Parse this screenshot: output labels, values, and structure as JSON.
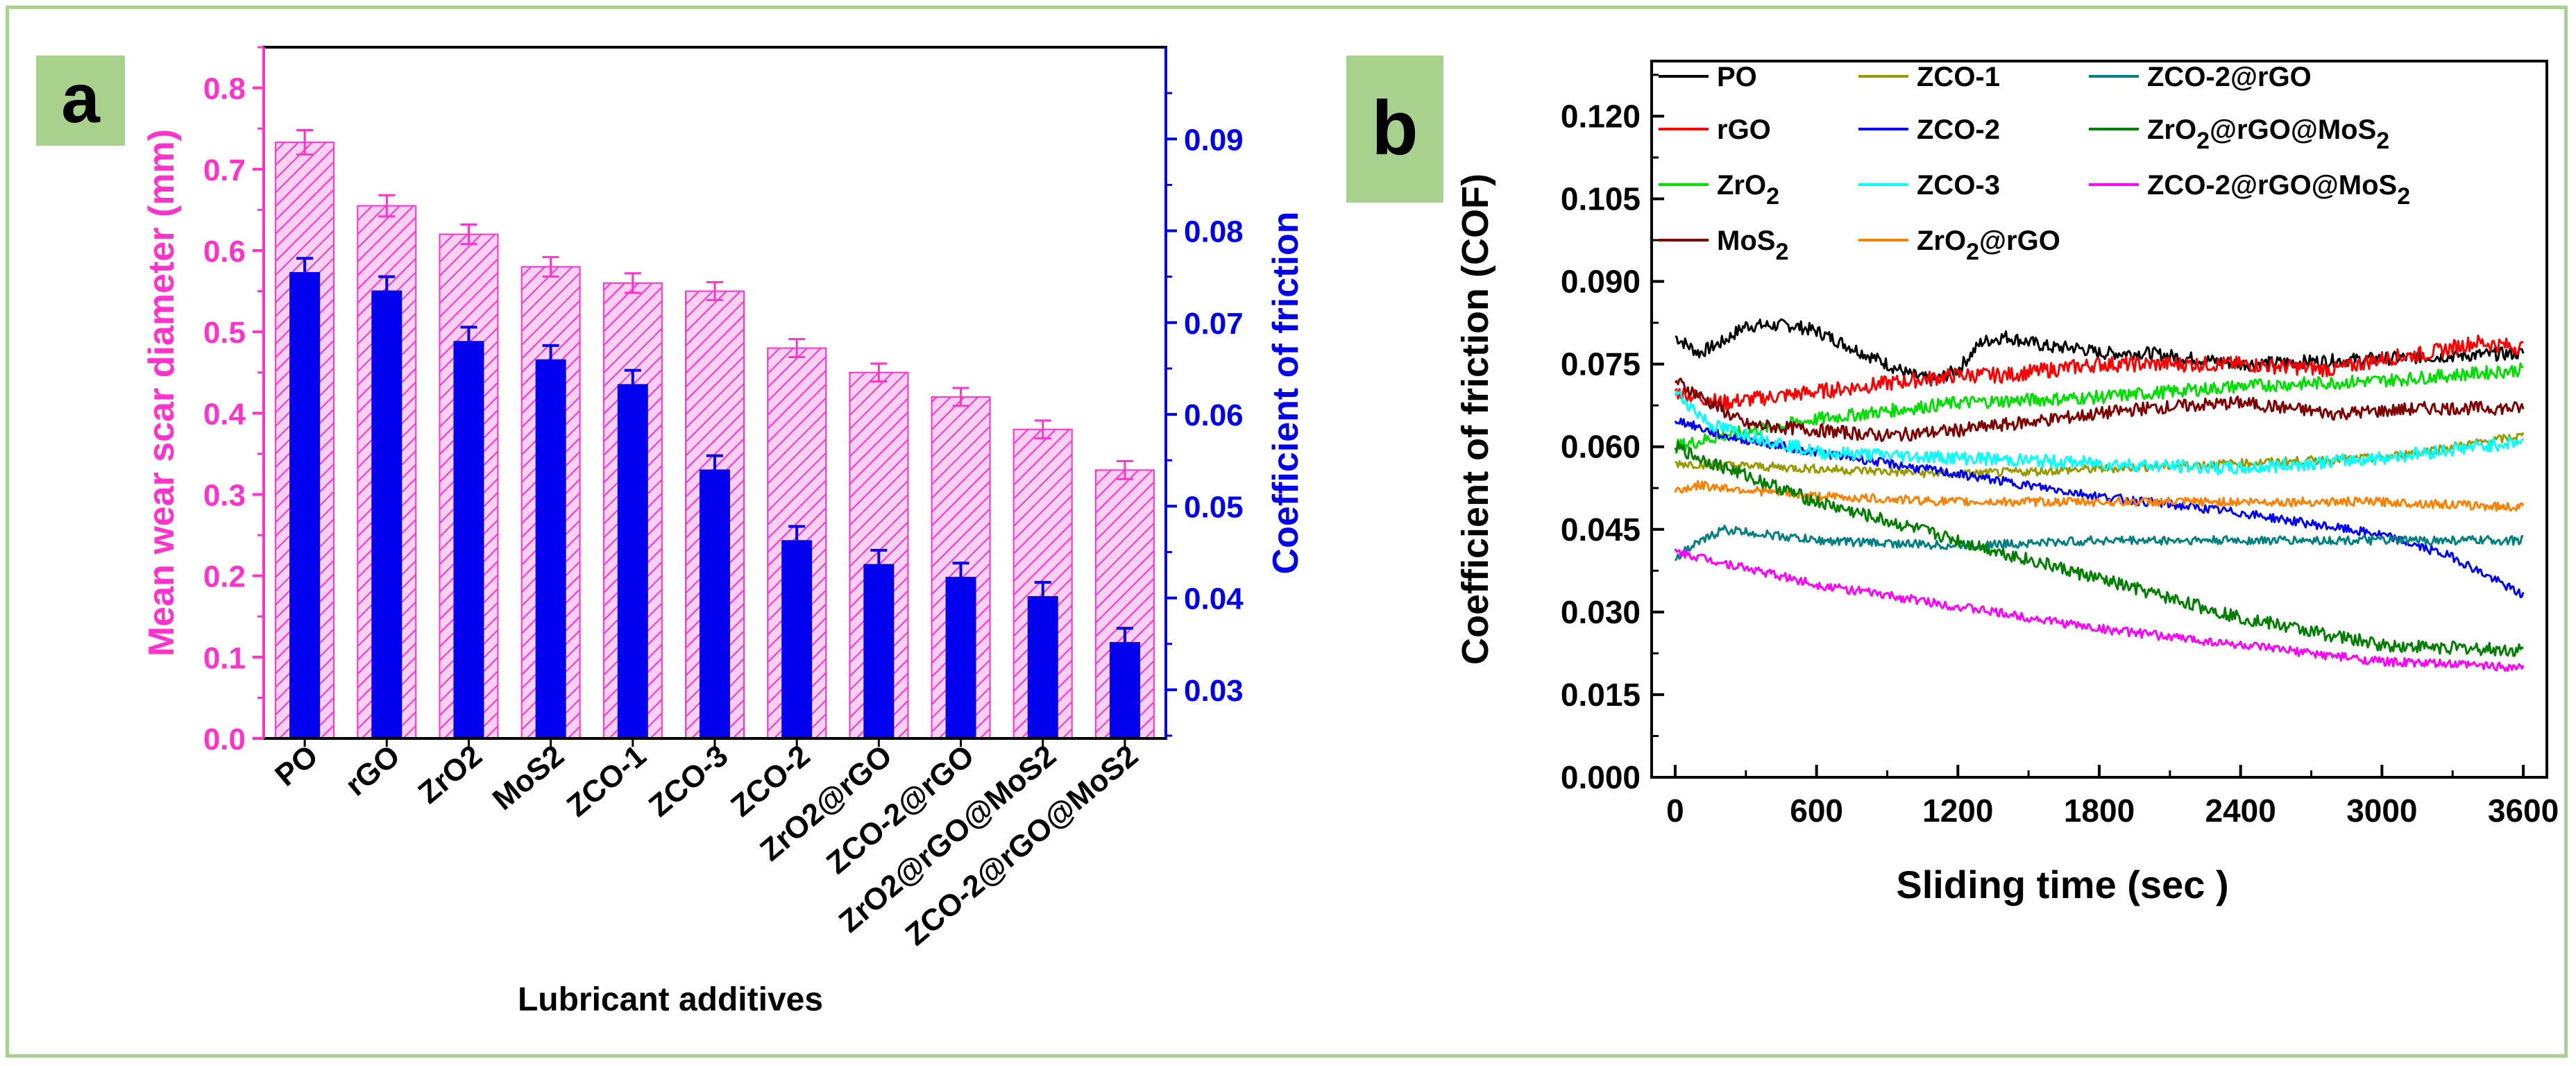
{
  "colors": {
    "frame": "#a9d18e",
    "badge": "#a9d18e",
    "magenta": "#ff33cc",
    "blue": "#0000ee"
  },
  "chart_data": [
    {
      "panel": "a",
      "type": "bar",
      "categories": [
        "PO",
        "rGO",
        "ZrO2",
        "MoS2",
        "ZCO-1",
        "ZCO-3",
        "ZCO-2",
        "ZrO2@rGO",
        "ZCO-2@rGO",
        "ZrO2@rGO@MoS2",
        "ZCO-2@rGO@MoS2"
      ],
      "series": [
        {
          "name": "Mean wear scar diameter (mm)",
          "axis": "left",
          "color": "#ff33cc",
          "pattern": "hatched",
          "values": [
            0.733,
            0.655,
            0.62,
            0.58,
            0.56,
            0.55,
            0.48,
            0.45,
            0.42,
            0.38,
            0.33
          ],
          "errors": [
            0.015,
            0.013,
            0.012,
            0.012,
            0.012,
            0.011,
            0.011,
            0.011,
            0.011,
            0.011,
            0.011
          ]
        },
        {
          "name": "Coefficient of friction",
          "axis": "right",
          "color": "#0000ee",
          "pattern": "solid",
          "values": [
            0.0755,
            0.0735,
            0.068,
            0.066,
            0.0633,
            0.054,
            0.0463,
            0.0437,
            0.0423,
            0.0402,
            0.0352
          ],
          "errors": [
            0.0015,
            0.0015,
            0.0015,
            0.0015,
            0.0015,
            0.0015,
            0.0015,
            0.0015,
            0.0015,
            0.0015,
            0.0015
          ]
        }
      ],
      "xlabel": "Lubricant additives",
      "ylabel": "Mean wear scar diameter (mm)",
      "y2label": "Coefficient of friction",
      "ylim": [
        0,
        0.85
      ],
      "y2lim": [
        0.0247,
        0.1
      ],
      "yticks": [
        "0.0",
        "0.1",
        "0.2",
        "0.3",
        "0.4",
        "0.5",
        "0.6",
        "0.7",
        "0.8"
      ],
      "y2ticks": [
        "0.03",
        "0.04",
        "0.05",
        "0.06",
        "0.07",
        "0.08",
        "0.09"
      ]
    },
    {
      "panel": "b",
      "type": "line",
      "xlabel": "Sliding time (sec )",
      "ylabel": "Coefficient of friction (COF)",
      "xlim": [
        -100,
        3700
      ],
      "ylim": [
        0,
        0.13
      ],
      "xticks": [
        "0",
        "600",
        "1200",
        "1800",
        "2400",
        "3000",
        "3600"
      ],
      "yticks": [
        "0.000",
        "0.015",
        "0.030",
        "0.045",
        "0.060",
        "0.075",
        "0.090",
        "0.105",
        "0.120"
      ],
      "series": [
        {
          "name": "PO",
          "color": "#000000",
          "noise": 0.0012,
          "x": [
            0,
            100,
            200,
            300,
            400,
            500,
            600,
            700,
            800,
            900,
            1000,
            1100,
            1200,
            1300,
            1400,
            1500,
            1600,
            1700,
            1800,
            1900,
            2000,
            2400,
            3000,
            3600
          ],
          "y": [
            0.08,
            0.077,
            0.079,
            0.082,
            0.082,
            0.082,
            0.081,
            0.079,
            0.077,
            0.075,
            0.073,
            0.072,
            0.074,
            0.079,
            0.08,
            0.079,
            0.078,
            0.078,
            0.077,
            0.077,
            0.077,
            0.075,
            0.076,
            0.077
          ]
        },
        {
          "name": "rGO",
          "color": "#ff0000",
          "noise": 0.0014,
          "x": [
            0,
            200,
            400,
            600,
            800,
            1000,
            1200,
            1400,
            1600,
            1800,
            2000,
            2400,
            2800,
            3000,
            3200,
            3400,
            3600
          ],
          "y": [
            0.07,
            0.068,
            0.069,
            0.07,
            0.071,
            0.072,
            0.073,
            0.073,
            0.074,
            0.075,
            0.075,
            0.075,
            0.074,
            0.076,
            0.077,
            0.079,
            0.078
          ]
        },
        {
          "name": "ZrO2",
          "label_main": "ZrO",
          "label_sub": "2",
          "color": "#00e000",
          "noise": 0.0012,
          "x": [
            0,
            200,
            600,
            1200,
            1800,
            2400,
            3000,
            3600
          ],
          "y": [
            0.06,
            0.062,
            0.065,
            0.068,
            0.069,
            0.071,
            0.072,
            0.074
          ]
        },
        {
          "name": "MoS2",
          "label_main": "MoS",
          "label_sub": "2",
          "color": "#800000",
          "noise": 0.0012,
          "x": [
            0,
            150,
            300,
            600,
            900,
            1200,
            1600,
            2000,
            2400,
            2800,
            3200,
            3600
          ],
          "y": [
            0.072,
            0.068,
            0.064,
            0.063,
            0.062,
            0.063,
            0.065,
            0.067,
            0.068,
            0.066,
            0.067,
            0.067
          ]
        },
        {
          "name": "ZCO-1",
          "color": "#999900",
          "noise": 0.0008,
          "x": [
            0,
            600,
            1200,
            1800,
            2400,
            3000,
            3600
          ],
          "y": [
            0.057,
            0.056,
            0.055,
            0.056,
            0.057,
            0.058,
            0.062
          ]
        },
        {
          "name": "ZCO-2",
          "color": "#0000ff",
          "noise": 0.0008,
          "x": [
            0,
            200,
            600,
            1200,
            1800,
            2400,
            3000,
            3300,
            3600
          ],
          "y": [
            0.065,
            0.062,
            0.059,
            0.055,
            0.051,
            0.048,
            0.044,
            0.04,
            0.033
          ]
        },
        {
          "name": "ZCO-3",
          "color": "#00ffff",
          "noise": 0.0012,
          "x": [
            0,
            150,
            600,
            1200,
            1800,
            2400,
            3000,
            3600
          ],
          "y": [
            0.07,
            0.064,
            0.059,
            0.058,
            0.057,
            0.056,
            0.058,
            0.061
          ]
        },
        {
          "name": "ZrO2@rGO",
          "label_main": "ZrO",
          "label_sub": "2",
          "label_tail": "@rGO",
          "color": "#ff8000",
          "noise": 0.0008,
          "x": [
            0,
            100,
            600,
            1200,
            1800,
            2400,
            3000,
            3600
          ],
          "y": [
            0.052,
            0.053,
            0.051,
            0.05,
            0.05,
            0.05,
            0.05,
            0.049
          ]
        },
        {
          "name": "ZCO-2@rGO",
          "color": "#008080",
          "noise": 0.0008,
          "x": [
            0,
            200,
            600,
            1200,
            1800,
            2400,
            3000,
            3600
          ],
          "y": [
            0.04,
            0.045,
            0.043,
            0.042,
            0.043,
            0.043,
            0.043,
            0.043
          ]
        },
        {
          "name": "ZrO2@rGO@MoS2",
          "label_main": "ZrO",
          "label_sub": "2",
          "label_tail": "@rGO@MoS",
          "label_sub2": "2",
          "color": "#008000",
          "noise": 0.0012,
          "x": [
            0,
            100,
            600,
            1200,
            1800,
            2400,
            3000,
            3600
          ],
          "y": [
            0.06,
            0.058,
            0.05,
            0.043,
            0.036,
            0.029,
            0.024,
            0.023
          ]
        },
        {
          "name": "ZCO-2@rGO@MoS2",
          "label_main": "ZCO-2@rGO@MoS",
          "label_sub": "2",
          "color": "#ff00ff",
          "noise": 0.0008,
          "x": [
            0,
            100,
            600,
            1200,
            1800,
            2400,
            3000,
            3600
          ],
          "y": [
            0.041,
            0.04,
            0.035,
            0.031,
            0.027,
            0.024,
            0.021,
            0.02
          ]
        }
      ]
    }
  ],
  "panels": {
    "a": {
      "badge": "a"
    },
    "b": {
      "badge": "b"
    }
  }
}
